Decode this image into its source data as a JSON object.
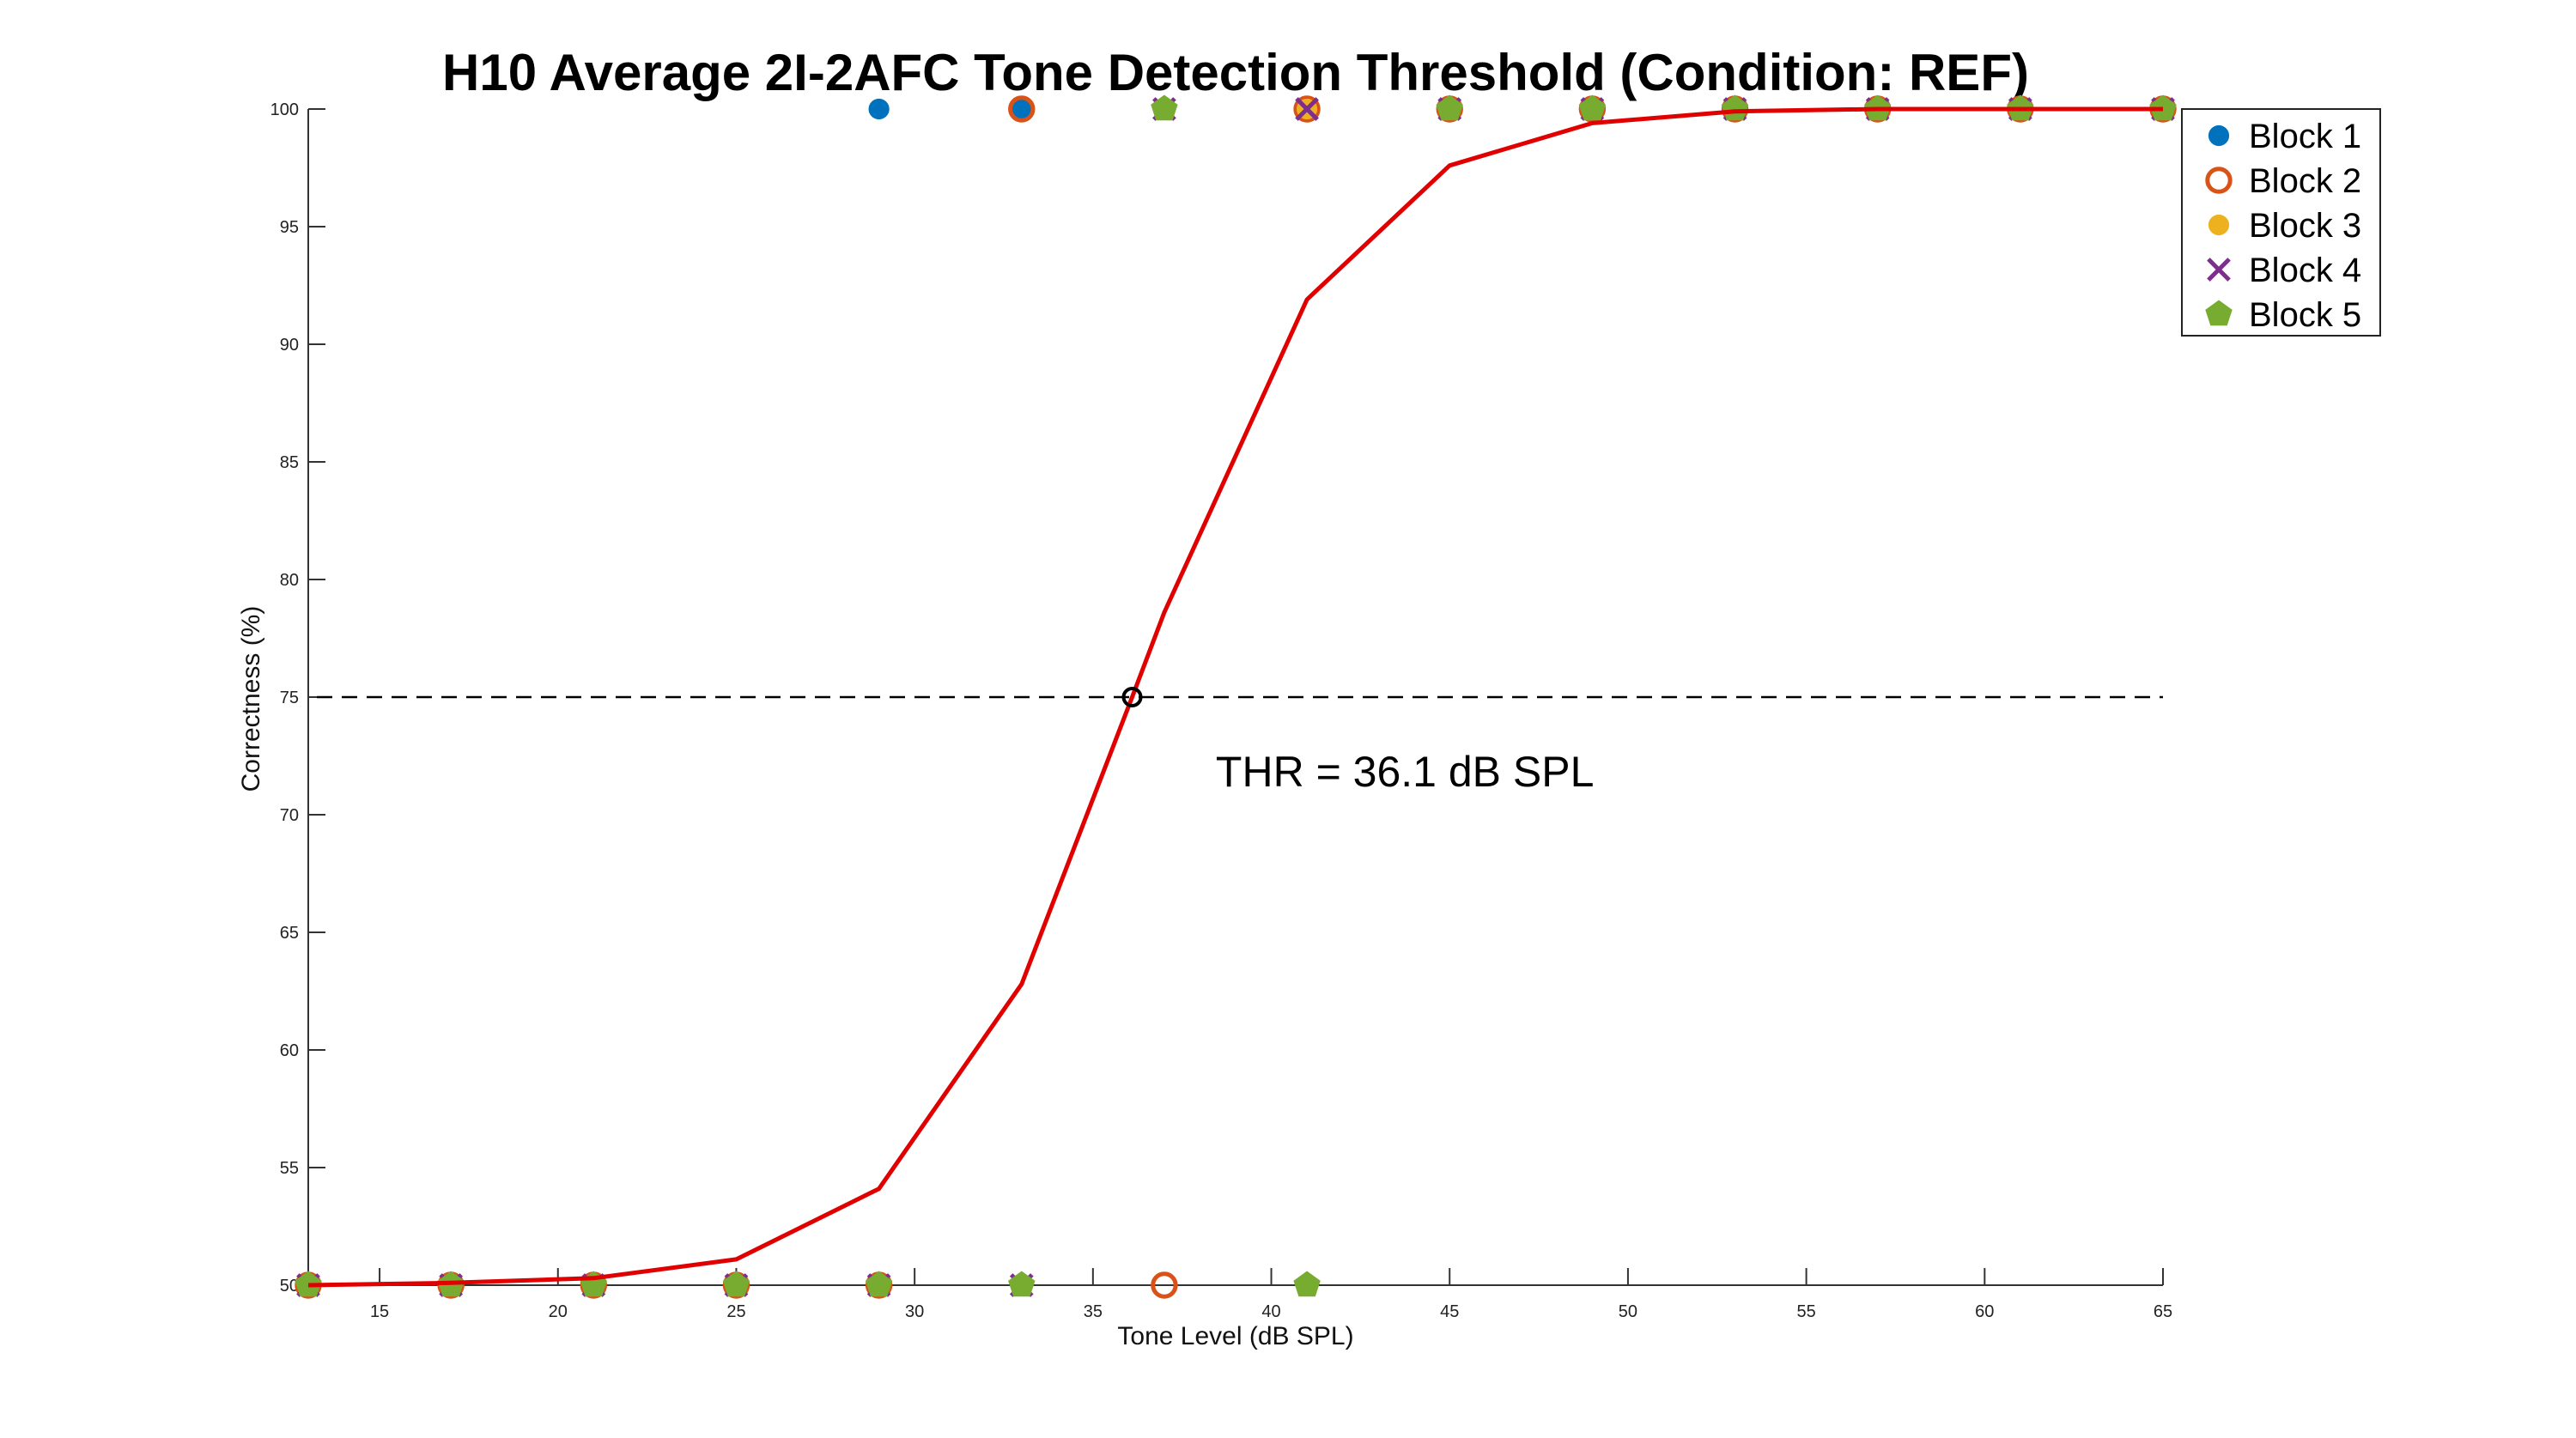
{
  "chart_data": {
    "type": "scatter",
    "title": "H10 Average 2I-2AFC Tone Detection Threshold (Condition: REF)",
    "xlabel": "Tone Level (dB SPL)",
    "ylabel": "Correctness (%)",
    "xlim": [
      13,
      65
    ],
    "ylim": [
      50,
      100
    ],
    "xticks": [
      15,
      20,
      25,
      30,
      35,
      40,
      45,
      50,
      55,
      60,
      65
    ],
    "yticks": [
      50,
      55,
      60,
      65,
      70,
      75,
      80,
      85,
      90,
      95,
      100
    ],
    "grid": false,
    "legend_position": "top-right",
    "series": [
      {
        "name": "Block 1",
        "color": "#0072BD",
        "marker": "circle",
        "points": [
          [
            13,
            50
          ],
          [
            17,
            50
          ],
          [
            21,
            50
          ],
          [
            25,
            50
          ],
          [
            29,
            100
          ],
          [
            33,
            100
          ],
          [
            37,
            100
          ],
          [
            41,
            100
          ],
          [
            45,
            100
          ],
          [
            49,
            100
          ],
          [
            53,
            100
          ],
          [
            57,
            100
          ],
          [
            61,
            100
          ],
          [
            65,
            100
          ]
        ]
      },
      {
        "name": "Block 2",
        "color": "#D95319",
        "marker": "circle-open",
        "points": [
          [
            13,
            50
          ],
          [
            17,
            50
          ],
          [
            21,
            50
          ],
          [
            25,
            50
          ],
          [
            29,
            50
          ],
          [
            33,
            100
          ],
          [
            37,
            50
          ],
          [
            41,
            100
          ],
          [
            45,
            100
          ],
          [
            49,
            100
          ],
          [
            53,
            100
          ],
          [
            57,
            100
          ],
          [
            61,
            100
          ],
          [
            65,
            100
          ]
        ]
      },
      {
        "name": "Block 3",
        "color": "#EDB120",
        "marker": "circle",
        "points": [
          [
            13,
            50
          ],
          [
            17,
            50
          ],
          [
            21,
            50
          ],
          [
            25,
            50
          ],
          [
            29,
            50
          ],
          [
            33,
            50
          ],
          [
            37,
            100
          ],
          [
            41,
            100
          ],
          [
            45,
            100
          ],
          [
            49,
            100
          ],
          [
            53,
            100
          ],
          [
            57,
            100
          ],
          [
            61,
            100
          ],
          [
            65,
            100
          ]
        ]
      },
      {
        "name": "Block 4",
        "color": "#7E2F8E",
        "marker": "x",
        "points": [
          [
            13,
            50
          ],
          [
            17,
            50
          ],
          [
            21,
            50
          ],
          [
            25,
            50
          ],
          [
            29,
            50
          ],
          [
            33,
            50
          ],
          [
            37,
            100
          ],
          [
            41,
            100
          ],
          [
            45,
            100
          ],
          [
            49,
            100
          ],
          [
            53,
            100
          ],
          [
            57,
            100
          ],
          [
            61,
            100
          ],
          [
            65,
            100
          ]
        ]
      },
      {
        "name": "Block 5",
        "color": "#77AC30",
        "marker": "pentagon",
        "points": [
          [
            13,
            50
          ],
          [
            17,
            50
          ],
          [
            21,
            50
          ],
          [
            25,
            50
          ],
          [
            29,
            50
          ],
          [
            33,
            50
          ],
          [
            37,
            100
          ],
          [
            41,
            50
          ],
          [
            45,
            100
          ],
          [
            49,
            100
          ],
          [
            53,
            100
          ],
          [
            57,
            100
          ],
          [
            61,
            100
          ],
          [
            65,
            100
          ]
        ]
      }
    ],
    "fit_curve": {
      "color": "#E00000",
      "points": [
        [
          13,
          50.0
        ],
        [
          17,
          50.1
        ],
        [
          21,
          50.3
        ],
        [
          25,
          51.1
        ],
        [
          29,
          54.1
        ],
        [
          33,
          62.8
        ],
        [
          36.1,
          75.0
        ],
        [
          37,
          78.6
        ],
        [
          41,
          91.9
        ],
        [
          45,
          97.6
        ],
        [
          49,
          99.4
        ],
        [
          53,
          99.9
        ],
        [
          57,
          100.0
        ],
        [
          61,
          100.0
        ],
        [
          65,
          100.0
        ]
      ]
    },
    "reference_line": {
      "y": 75,
      "style": "dashed",
      "color": "#000000"
    },
    "threshold_marker": {
      "x": 36.1,
      "y": 75
    },
    "annotation": {
      "text": "THR = 36.1 dB SPL",
      "x": 37,
      "y": 71.2
    }
  }
}
